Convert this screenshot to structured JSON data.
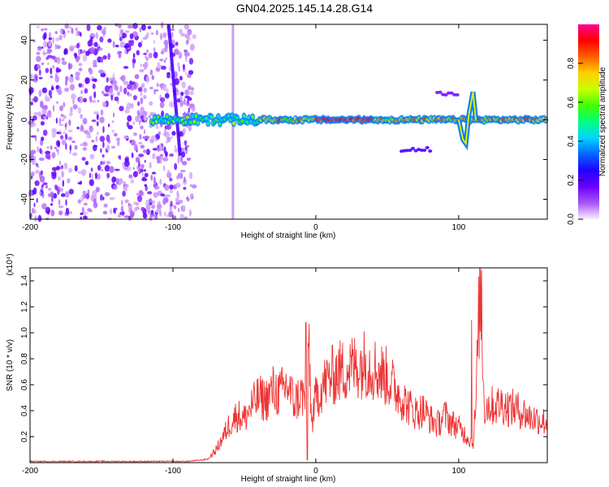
{
  "page": {
    "title": "GN04.2025.145.14.28.G14"
  },
  "chart_data": [
    {
      "type": "heatmap",
      "title": "GN04.2025.145.14.28.G14",
      "xlabel": "Height of straight line (km)",
      "ylabel": "Frequency (Hz)",
      "xlim": [
        -200,
        162
      ],
      "ylim": [
        -50,
        48
      ],
      "x_ticks": [
        -200,
        -100,
        0,
        100
      ],
      "y_ticks": [
        -40,
        -20,
        0,
        20,
        40
      ],
      "colorbar": {
        "label": "Normalized spectral amplitude",
        "range": [
          0,
          1
        ],
        "ticks": [
          0.0,
          0.2,
          0.4,
          0.6,
          0.8
        ],
        "palette": [
          "#f8f0ff",
          "#a855f7",
          "#6a00ff",
          "#2200ff",
          "#0066ff",
          "#00d4ff",
          "#00ff80",
          "#40ff00",
          "#c8ff00",
          "#ffd000",
          "#ff6000",
          "#ff0000",
          "#ff0090"
        ]
      },
      "features": [
        {
          "name": "noise-field",
          "x": [
            -200,
            -85
          ],
          "f": [
            -50,
            48
          ],
          "amplitude": 0.1
        },
        {
          "name": "streak",
          "x": [
            -103,
            -95
          ],
          "f": [
            48,
            -18
          ],
          "amplitude": 0.2
        },
        {
          "name": "streak",
          "x": [
            -58,
            -58
          ],
          "f": [
            48,
            -50
          ],
          "amplitude": 0.05
        },
        {
          "name": "main-band",
          "x": [
            -115,
            162
          ],
          "f": [
            0,
            0
          ],
          "amplitude": 0.9
        },
        {
          "name": "dip",
          "x": [
            100,
            110
          ],
          "f": [
            -12,
            14
          ],
          "amplitude": 0.8
        },
        {
          "name": "sideband",
          "x": [
            60,
            80
          ],
          "f": [
            -15,
            -15
          ],
          "amplitude": 0.2
        },
        {
          "name": "sideband",
          "x": [
            85,
            100
          ],
          "f": [
            13,
            13
          ],
          "amplitude": 0.15
        }
      ]
    },
    {
      "type": "line",
      "xlabel": "Height of straight line (km)",
      "ylabel": "SNR (10 * v/v)",
      "y_multiplier": "(x10⁴)",
      "xlim": [
        -200,
        162
      ],
      "ylim": [
        0,
        1.5
      ],
      "x_ticks": [
        -200,
        -100,
        0,
        100
      ],
      "y_ticks": [
        0.2,
        0.4,
        0.6,
        0.8,
        1.0,
        1.2,
        1.4
      ],
      "color": "#ee3333",
      "x": [
        -200,
        -180,
        -160,
        -140,
        -120,
        -100,
        -90,
        -80,
        -75,
        -70,
        -65,
        -60,
        -55,
        -50,
        -45,
        -40,
        -35,
        -30,
        -25,
        -20,
        -15,
        -10,
        -6,
        -5,
        -3,
        0,
        5,
        10,
        15,
        20,
        25,
        30,
        35,
        40,
        45,
        50,
        55,
        60,
        65,
        70,
        75,
        80,
        85,
        90,
        95,
        100,
        105,
        110,
        112,
        115,
        118,
        120,
        125,
        130,
        135,
        140,
        145,
        150,
        155,
        162
      ],
      "y": [
        0.01,
        0.01,
        0.01,
        0.01,
        0.01,
        0.01,
        0.01,
        0.02,
        0.03,
        0.1,
        0.2,
        0.32,
        0.38,
        0.35,
        0.45,
        0.52,
        0.5,
        0.58,
        0.55,
        0.62,
        0.48,
        0.55,
        0.45,
        1.05,
        0.3,
        0.52,
        0.62,
        0.68,
        0.72,
        0.74,
        0.76,
        0.78,
        0.8,
        0.76,
        0.72,
        0.68,
        0.6,
        0.52,
        0.45,
        0.4,
        0.42,
        0.35,
        0.3,
        0.38,
        0.32,
        0.28,
        0.22,
        0.15,
        0.45,
        1.48,
        0.42,
        0.46,
        0.45,
        0.47,
        0.44,
        0.43,
        0.4,
        0.36,
        0.35,
        0.32
      ],
      "spikes": [
        {
          "x": -7,
          "y": 1.08
        },
        {
          "x": -6,
          "y": 0.02
        },
        {
          "x": 109,
          "y": 1.1
        },
        {
          "x": 116,
          "y": 1.48
        }
      ]
    }
  ]
}
